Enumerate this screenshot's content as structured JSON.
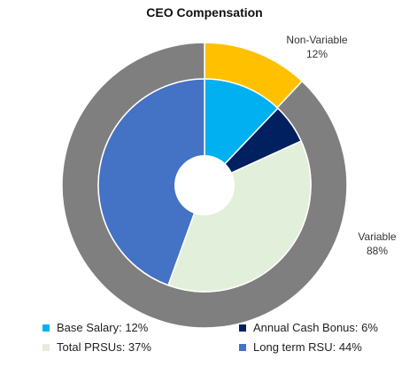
{
  "chart_data": {
    "type": "pie",
    "title": "CEO Compensation",
    "outer_ring": {
      "segments": [
        {
          "label": "Non-Variable",
          "pct_label": "12%",
          "value": 12,
          "color": "#FFC000"
        },
        {
          "label": "Variable",
          "pct_label": "88%",
          "value": 88,
          "color": "#7F7F7F"
        }
      ]
    },
    "inner_pie": {
      "segments": [
        {
          "name": "Base Salary",
          "value": 12,
          "color": "#00B0F0"
        },
        {
          "name": "Annual Cash Bonus",
          "value": 6,
          "color": "#002060"
        },
        {
          "name": "Total PRSUs",
          "value": 37,
          "color": "#E2EFDA"
        },
        {
          "name": "Long term RSU",
          "value": 44,
          "color": "#4472C4"
        }
      ]
    },
    "legend": [
      {
        "text": "Base Salary: 12%",
        "color": "#00B0F0"
      },
      {
        "text": "Annual Cash Bonus: 6%",
        "color": "#002060"
      },
      {
        "text": "Total PRSUs: 37%",
        "color": "#E2EFDA"
      },
      {
        "text": "Long term RSU: 44%",
        "color": "#4472C4"
      }
    ],
    "legend_position": "bottom"
  }
}
